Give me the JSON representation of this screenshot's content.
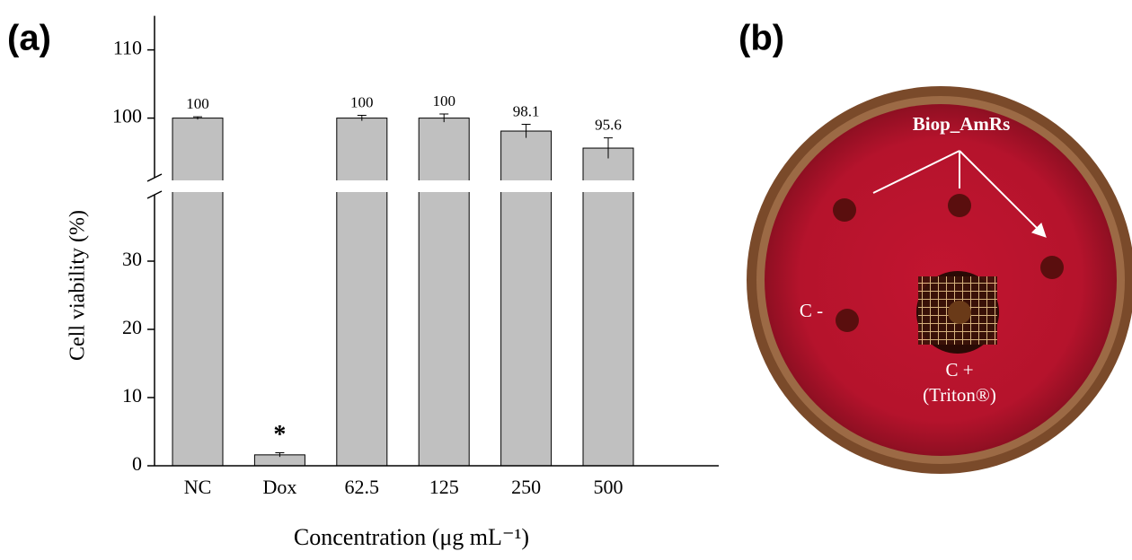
{
  "chart_data": {
    "type": "bar",
    "y_label": "Cell viability (%)",
    "x_label": "Concentration (μg mL⁻¹)",
    "categories": [
      "NC",
      "Dox",
      "62.5",
      "125",
      "250",
      "500"
    ],
    "values": [
      100,
      1.6,
      100,
      100,
      98.1,
      95.6
    ],
    "errors": [
      0.2,
      0.3,
      0.4,
      0.6,
      1.0,
      1.5
    ],
    "value_labels_shown": [
      "100",
      null,
      "100",
      "100",
      "98.1",
      "95.6"
    ],
    "annotations": [
      {
        "text": "*",
        "category": "Dox"
      }
    ],
    "color": "#c0c0c0",
    "y_segments": [
      {
        "ylim": [
          0,
          40
        ],
        "yticks": [
          0,
          10,
          20,
          30
        ]
      },
      {
        "ylim": [
          91,
          115
        ],
        "yticks": [
          100,
          110
        ]
      }
    ]
  },
  "panels": {
    "a": "(a)",
    "b": "(b)"
  },
  "plate": {
    "samples": "Biop_AmRs",
    "negative": "C -",
    "positive": "C +",
    "positive_note": "(Triton®)"
  }
}
